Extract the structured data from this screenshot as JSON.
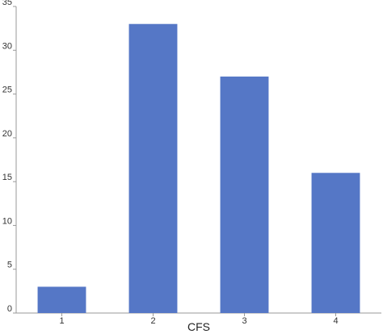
{
  "chart_data": {
    "type": "bar",
    "categories": [
      "1",
      "2",
      "3",
      "4"
    ],
    "values": [
      3,
      33,
      27,
      16
    ],
    "xlabel": "CFS",
    "ylabel": "",
    "ylim": [
      0,
      35
    ],
    "yticks": [
      0,
      5,
      10,
      15,
      20,
      25,
      30,
      35
    ],
    "grid": false,
    "legend": "none",
    "colors": {
      "bar": "#5577c6",
      "axis": "#999999"
    }
  }
}
